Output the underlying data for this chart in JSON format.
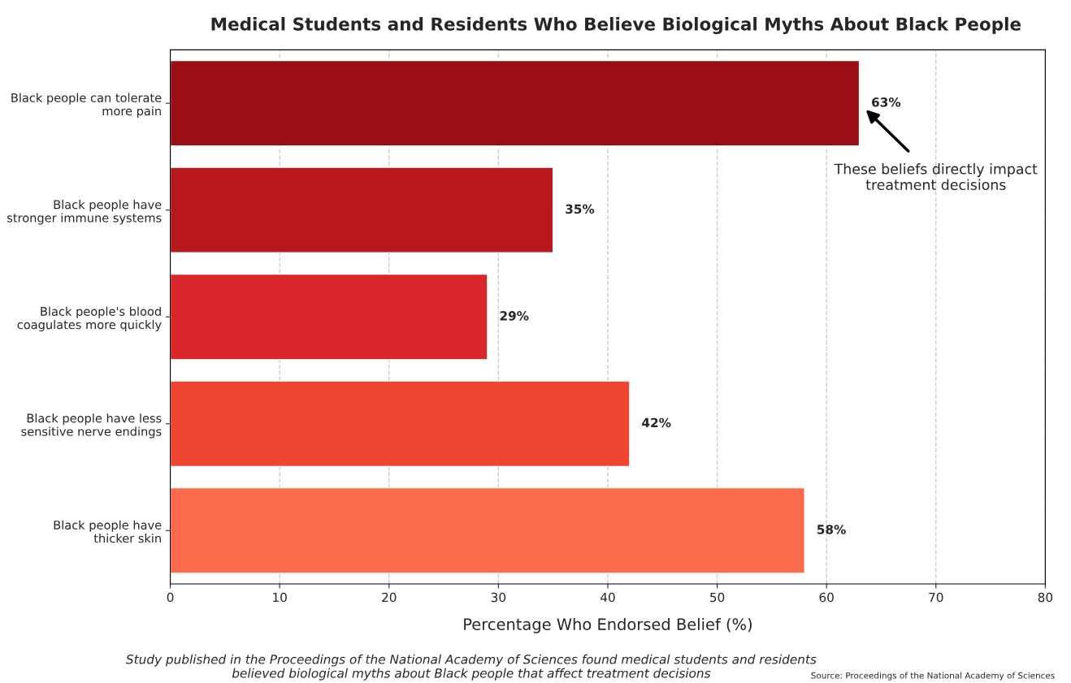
{
  "chart_data": {
    "type": "bar",
    "orientation": "horizontal",
    "title": "Medical Students and Residents Who Believe Biological Myths About Black People",
    "xlabel": "Percentage Who Endorsed Belief (%)",
    "categories": [
      "Black people can tolerate\nmore pain",
      "Black people have\nstronger immune systems",
      "Black people's blood\ncoagulates more quickly",
      "Black people have less\nsensitive nerve endings",
      "Black people have\nthicker skin"
    ],
    "values": [
      63,
      35,
      29,
      42,
      58
    ],
    "colors": [
      "#990f15",
      "#b8171e",
      "#d8262a",
      "#ef4631",
      "#fb6b4c"
    ],
    "value_labels": [
      "63%",
      "35%",
      "29%",
      "42%",
      "58%"
    ],
    "xlim": [
      0,
      80
    ],
    "xticks": [
      0,
      10,
      20,
      30,
      40,
      50,
      60,
      70,
      80
    ],
    "grid": "x",
    "annotations": [
      "These beliefs directly impact\ntreatment decisions",
      "Study published in the Proceedings of the National Academy of Sciences found medical students and residents\nbelieved biological myths about Black people that affect treatment decisions",
      "Source: Proceedings of the National Academy of Sciences"
    ]
  }
}
